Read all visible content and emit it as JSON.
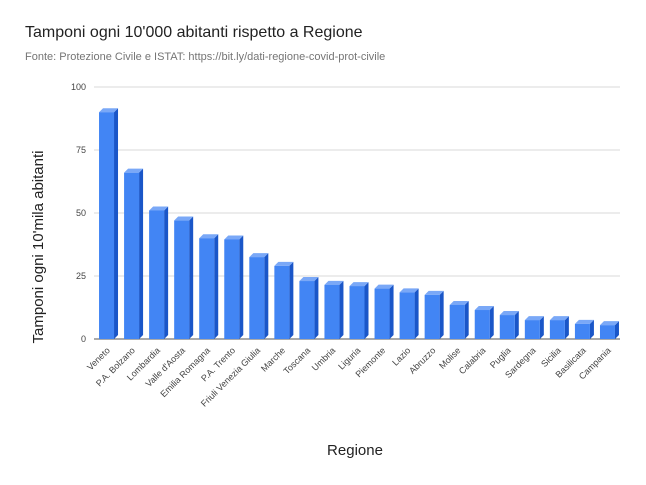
{
  "header": {
    "title": "Tamponi ogni 10'000 abitanti rispetto a Regione",
    "subtitle": "Fonte: Protezione Civile e ISTAT: https://bit.ly/dati-regione-covid-prot-civile"
  },
  "colors": {
    "bar": "#4285f4",
    "bar_side": "#1a56c8",
    "bar_top": "#7aa8f7",
    "grid": "#d9d9d9"
  },
  "chart_data": {
    "type": "bar",
    "title": "Tamponi ogni 10'000 abitanti rispetto a Regione",
    "subtitle": "Fonte: Protezione Civile e ISTAT: https://bit.ly/dati-regione-covid-prot-civile",
    "xlabel": "Regione",
    "ylabel": "Tamponi ogni 10'mila abitanti",
    "ylim": [
      0,
      100
    ],
    "yticks": [
      0,
      25,
      50,
      75,
      100
    ],
    "grid": true,
    "categories": [
      "Veneto",
      "P.A. Bolzano",
      "Lombardia",
      "Valle d'Aosta",
      "Emilia Romagna",
      "P.A. Trento",
      "Friuli Venezia Giulia",
      "Marche",
      "Toscana",
      "Umbria",
      "Liguria",
      "Piemonte",
      "Lazio",
      "Abruzzo",
      "Molise",
      "Calabria",
      "Puglia",
      "Sardegna",
      "Sicilia",
      "Basilicata",
      "Campania"
    ],
    "values": [
      90,
      66,
      51,
      47,
      40,
      39.5,
      32.5,
      29,
      23,
      21.5,
      21,
      20,
      18.5,
      17.5,
      13.5,
      11.5,
      9.5,
      7.5,
      7.5,
      6,
      5.5
    ]
  }
}
